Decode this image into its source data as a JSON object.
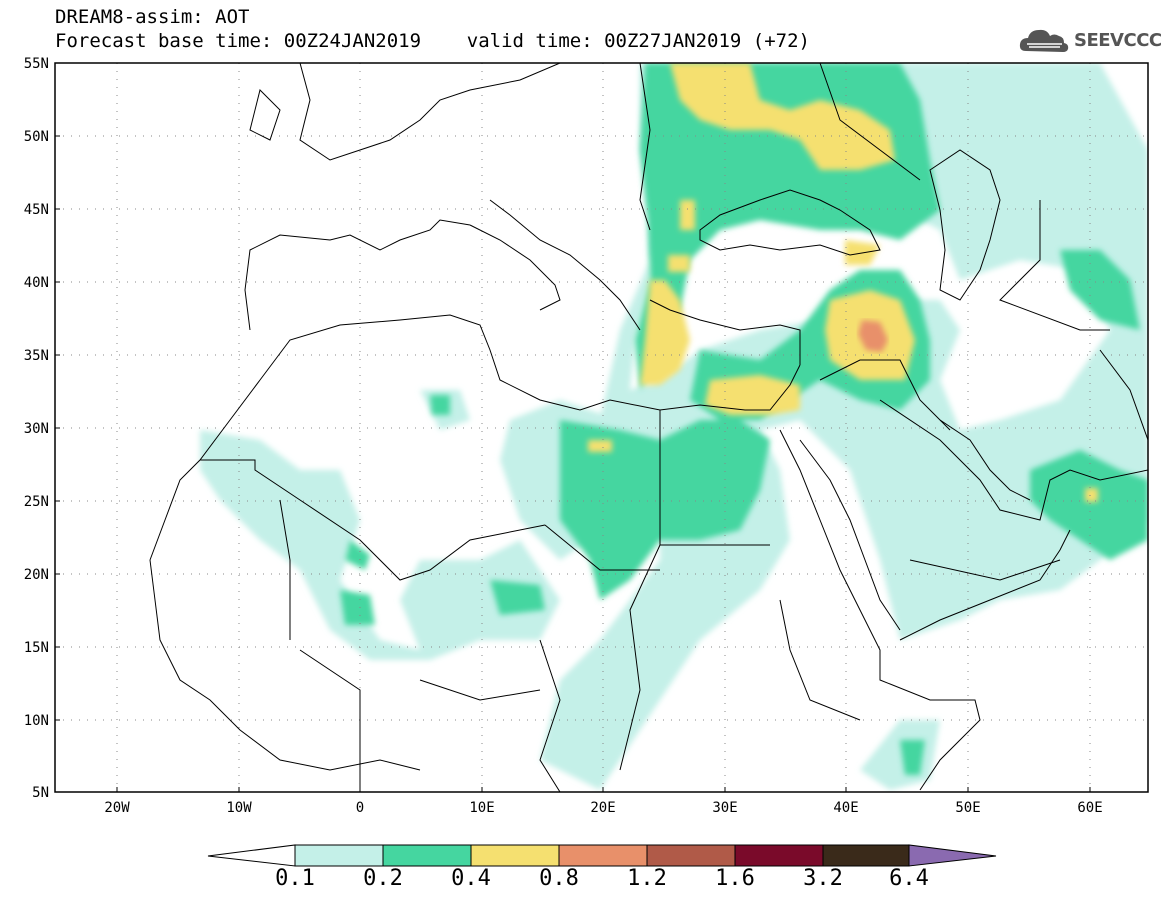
{
  "header": {
    "line1": "DREAM8-assim: AOT",
    "line2": "Forecast base time: 00Z24JAN2019    valid time: 00Z27JAN2019 (+72)"
  },
  "logo": {
    "text": "SEEVCCC",
    "icon": "cloud-icon"
  },
  "map": {
    "lon_range": [
      -25,
      65
    ],
    "lat_range": [
      5,
      55
    ],
    "lat_labels": [
      "55N",
      "50N",
      "45N",
      "40N",
      "35N",
      "30N",
      "25N",
      "20N",
      "15N",
      "10N",
      "5N"
    ],
    "lon_labels": [
      "20W",
      "10W",
      "0",
      "10E",
      "20E",
      "30E",
      "40E",
      "50E",
      "60E"
    ],
    "grid": "dotted"
  },
  "colorbar": {
    "labels": [
      "0.1",
      "0.2",
      "0.4",
      "0.8",
      "1.2",
      "1.6",
      "3.2",
      "6.4"
    ],
    "colors": [
      "#c4f0e8",
      "#45d6a0",
      "#f5e070",
      "#e8906a",
      "#b05a48",
      "#7a0a2a",
      "#3a2a1a",
      "#8a6ab0"
    ]
  }
}
